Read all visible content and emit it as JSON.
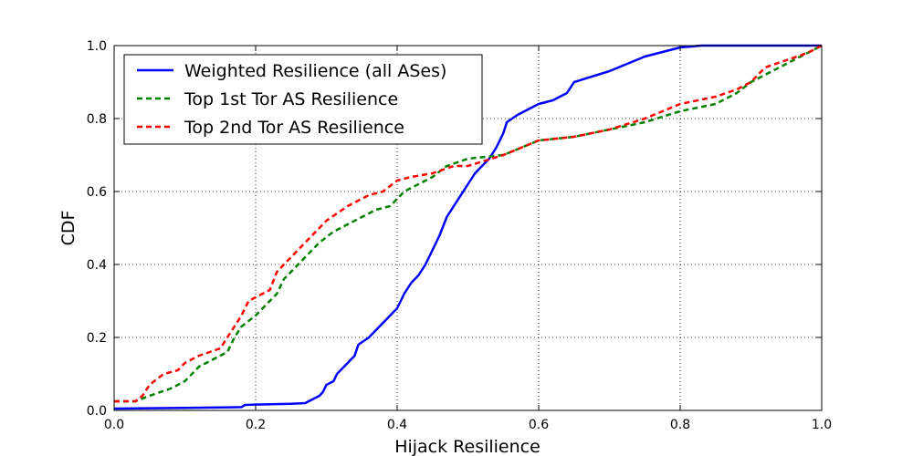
{
  "chart_data": {
    "type": "line",
    "title": "",
    "xlabel": "Hijack Resilience",
    "ylabel": "CDF",
    "xlim": [
      0.0,
      1.0
    ],
    "ylim": [
      0.0,
      1.0
    ],
    "xticks": [
      "0.0",
      "0.2",
      "0.4",
      "0.6",
      "0.8",
      "1.0"
    ],
    "yticks": [
      "0.0",
      "0.2",
      "0.4",
      "0.6",
      "0.8",
      "1.0"
    ],
    "grid": true,
    "legend_position": "top-left",
    "series": [
      {
        "name": "Weighted Resilience (all ASes)",
        "color": "#0000ff",
        "style": "solid",
        "points": [
          [
            0.0,
            0.005
          ],
          [
            0.05,
            0.006
          ],
          [
            0.1,
            0.007
          ],
          [
            0.15,
            0.008
          ],
          [
            0.18,
            0.009
          ],
          [
            0.185,
            0.015
          ],
          [
            0.2,
            0.016
          ],
          [
            0.25,
            0.018
          ],
          [
            0.27,
            0.02
          ],
          [
            0.28,
            0.03
          ],
          [
            0.29,
            0.04
          ],
          [
            0.295,
            0.05
          ],
          [
            0.3,
            0.07
          ],
          [
            0.31,
            0.08
          ],
          [
            0.315,
            0.1
          ],
          [
            0.32,
            0.11
          ],
          [
            0.33,
            0.13
          ],
          [
            0.34,
            0.15
          ],
          [
            0.345,
            0.18
          ],
          [
            0.36,
            0.2
          ],
          [
            0.37,
            0.22
          ],
          [
            0.38,
            0.24
          ],
          [
            0.39,
            0.26
          ],
          [
            0.4,
            0.28
          ],
          [
            0.41,
            0.32
          ],
          [
            0.42,
            0.35
          ],
          [
            0.43,
            0.37
          ],
          [
            0.44,
            0.4
          ],
          [
            0.45,
            0.44
          ],
          [
            0.46,
            0.48
          ],
          [
            0.47,
            0.53
          ],
          [
            0.48,
            0.56
          ],
          [
            0.49,
            0.59
          ],
          [
            0.5,
            0.62
          ],
          [
            0.51,
            0.65
          ],
          [
            0.52,
            0.67
          ],
          [
            0.53,
            0.69
          ],
          [
            0.54,
            0.72
          ],
          [
            0.55,
            0.76
          ],
          [
            0.555,
            0.79
          ],
          [
            0.57,
            0.81
          ],
          [
            0.58,
            0.82
          ],
          [
            0.6,
            0.84
          ],
          [
            0.62,
            0.85
          ],
          [
            0.64,
            0.87
          ],
          [
            0.65,
            0.9
          ],
          [
            0.7,
            0.93
          ],
          [
            0.75,
            0.97
          ],
          [
            0.8,
            0.995
          ],
          [
            0.83,
            1.0
          ],
          [
            1.0,
            1.0
          ]
        ]
      },
      {
        "name": "Top 1st Tor AS Resilience",
        "color": "#008000",
        "style": "dashed",
        "points": [
          [
            0.0,
            0.025
          ],
          [
            0.03,
            0.025
          ],
          [
            0.05,
            0.04
          ],
          [
            0.08,
            0.06
          ],
          [
            0.1,
            0.08
          ],
          [
            0.12,
            0.12
          ],
          [
            0.15,
            0.15
          ],
          [
            0.16,
            0.16
          ],
          [
            0.17,
            0.2
          ],
          [
            0.18,
            0.23
          ],
          [
            0.2,
            0.26
          ],
          [
            0.22,
            0.3
          ],
          [
            0.23,
            0.32
          ],
          [
            0.24,
            0.36
          ],
          [
            0.25,
            0.38
          ],
          [
            0.27,
            0.42
          ],
          [
            0.29,
            0.46
          ],
          [
            0.31,
            0.49
          ],
          [
            0.33,
            0.51
          ],
          [
            0.35,
            0.53
          ],
          [
            0.37,
            0.55
          ],
          [
            0.39,
            0.56
          ],
          [
            0.4,
            0.58
          ],
          [
            0.41,
            0.6
          ],
          [
            0.43,
            0.62
          ],
          [
            0.45,
            0.64
          ],
          [
            0.47,
            0.67
          ],
          [
            0.5,
            0.69
          ],
          [
            0.55,
            0.7
          ],
          [
            0.6,
            0.74
          ],
          [
            0.65,
            0.75
          ],
          [
            0.7,
            0.77
          ],
          [
            0.75,
            0.79
          ],
          [
            0.8,
            0.82
          ],
          [
            0.85,
            0.84
          ],
          [
            0.88,
            0.87
          ],
          [
            0.9,
            0.9
          ],
          [
            0.93,
            0.93
          ],
          [
            0.96,
            0.96
          ],
          [
            1.0,
            1.0
          ]
        ]
      },
      {
        "name": "Top 2nd Tor AS Resilience",
        "color": "#ff0000",
        "style": "dashed",
        "points": [
          [
            0.0,
            0.025
          ],
          [
            0.03,
            0.025
          ],
          [
            0.04,
            0.04
          ],
          [
            0.05,
            0.07
          ],
          [
            0.07,
            0.1
          ],
          [
            0.09,
            0.11
          ],
          [
            0.1,
            0.13
          ],
          [
            0.12,
            0.15
          ],
          [
            0.15,
            0.17
          ],
          [
            0.16,
            0.2
          ],
          [
            0.17,
            0.23
          ],
          [
            0.18,
            0.26
          ],
          [
            0.19,
            0.3
          ],
          [
            0.2,
            0.31
          ],
          [
            0.22,
            0.33
          ],
          [
            0.23,
            0.38
          ],
          [
            0.24,
            0.4
          ],
          [
            0.26,
            0.44
          ],
          [
            0.28,
            0.48
          ],
          [
            0.3,
            0.52
          ],
          [
            0.33,
            0.56
          ],
          [
            0.36,
            0.59
          ],
          [
            0.38,
            0.6
          ],
          [
            0.4,
            0.63
          ],
          [
            0.42,
            0.64
          ],
          [
            0.45,
            0.65
          ],
          [
            0.48,
            0.67
          ],
          [
            0.5,
            0.67
          ],
          [
            0.55,
            0.7
          ],
          [
            0.6,
            0.74
          ],
          [
            0.65,
            0.75
          ],
          [
            0.7,
            0.77
          ],
          [
            0.75,
            0.8
          ],
          [
            0.8,
            0.84
          ],
          [
            0.85,
            0.86
          ],
          [
            0.88,
            0.88
          ],
          [
            0.9,
            0.9
          ],
          [
            0.92,
            0.94
          ],
          [
            0.95,
            0.96
          ],
          [
            0.98,
            0.98
          ],
          [
            1.0,
            1.0
          ]
        ]
      }
    ]
  }
}
